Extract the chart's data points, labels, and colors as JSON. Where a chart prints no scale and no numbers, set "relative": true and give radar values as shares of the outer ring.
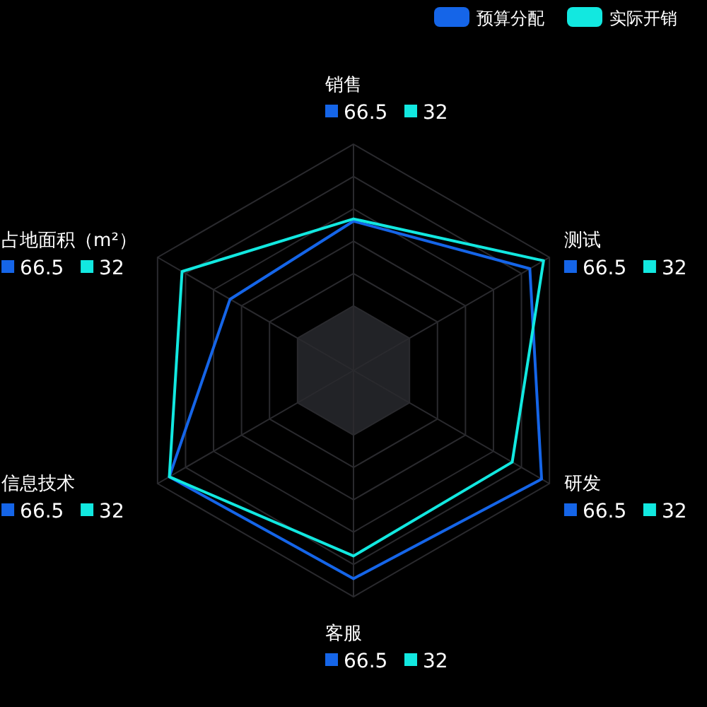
{
  "chart_data": {
    "type": "radar",
    "relative": true,
    "legend": "top right",
    "categories": [
      "销售",
      "测试",
      "研发",
      "客服",
      "信息技术",
      "占地面积（m²）"
    ],
    "series": [
      {
        "name": "预算分配",
        "color": "#1565e8",
        "values": [
          0.66,
          0.9,
          0.96,
          0.92,
          0.94,
          0.63
        ]
      },
      {
        "name": "实际开销",
        "color": "#12e8e0",
        "values": [
          0.67,
          0.97,
          0.81,
          0.82,
          0.94,
          0.875
        ]
      }
    ],
    "annotations": [
      "66.5",
      "32",
      "66.5",
      "32",
      "66.5",
      "32",
      "66.5",
      "32",
      "66.5",
      "32",
      "66.5",
      "32"
    ]
  }
}
